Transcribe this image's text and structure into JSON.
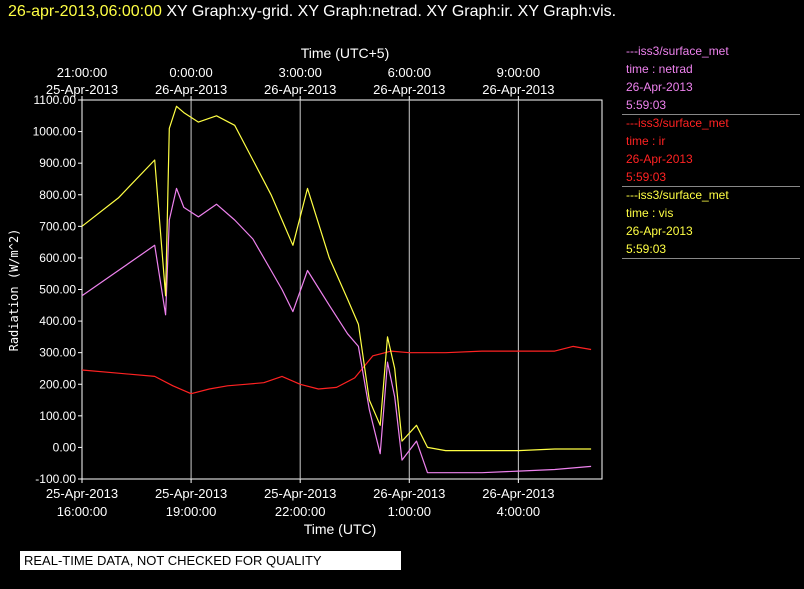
{
  "header": {
    "timestamp": "26-apr-2013,06:00:00",
    "graphs": "XY Graph:xy-grid.  XY Graph:netrad.  XY Graph:ir.  XY Graph:vis."
  },
  "legend": [
    {
      "line": "---iss3/surface_met",
      "var": "time : netrad",
      "date": "26-Apr-2013",
      "time": "5:59:03",
      "color": "#ee82ee"
    },
    {
      "line": "---iss3/surface_met",
      "var": "time : ir",
      "date": "26-Apr-2013",
      "time": "5:59:03",
      "color": "#ff2222"
    },
    {
      "line": "---iss3/surface_met",
      "var": "time : vis",
      "date": "26-Apr-2013",
      "time": "5:59:03",
      "color": "#ffff44"
    }
  ],
  "warning": "REAL-TIME DATA, NOT CHECKED FOR QUALITY",
  "chart_data": {
    "type": "line",
    "ylabel": "Radiation (W/m^2)",
    "xlabel_bottom": "Time (UTC)",
    "xlabel_top": "Time (UTC+5)",
    "ylim": [
      -100,
      1100
    ],
    "xlim_hours_utc": [
      16.0,
      30.3
    ],
    "yticks": [
      -100,
      0,
      100,
      200,
      300,
      400,
      500,
      600,
      700,
      800,
      900,
      1000,
      1100
    ],
    "ytick_labels": [
      "-100.00",
      "0.00",
      "100.00",
      "200.00",
      "300.00",
      "400.00",
      "500.00",
      "600.00",
      "700.00",
      "800.00",
      "900.00",
      "1000.00",
      "1100.00"
    ],
    "xticks_bottom": [
      {
        "date": "25-Apr-2013",
        "time": "16:00:00"
      },
      {
        "date": "25-Apr-2013",
        "time": "19:00:00"
      },
      {
        "date": "25-Apr-2013",
        "time": "22:00:00"
      },
      {
        "date": "26-Apr-2013",
        "time": "1:00:00"
      },
      {
        "date": "26-Apr-2013",
        "time": "4:00:00"
      }
    ],
    "xticks_top": [
      {
        "time": "21:00:00",
        "date": "25-Apr-2013"
      },
      {
        "time": "0:00:00",
        "date": "26-Apr-2013"
      },
      {
        "time": "3:00:00",
        "date": "26-Apr-2013"
      },
      {
        "time": "6:00:00",
        "date": "26-Apr-2013"
      },
      {
        "time": "9:00:00",
        "date": "26-Apr-2013"
      }
    ],
    "grid": "vertical",
    "legend_position": "right",
    "series": [
      {
        "name": "time : vis",
        "color": "#ffff44",
        "x": [
          16.0,
          17.0,
          18.0,
          18.3,
          18.4,
          18.6,
          18.8,
          19.2,
          19.7,
          20.2,
          20.7,
          21.2,
          21.5,
          21.8,
          22.2,
          22.8,
          23.3,
          23.6,
          23.9,
          24.2,
          24.4,
          24.6,
          24.8,
          25.2,
          25.5,
          26.0,
          27.0,
          28.0,
          29.0,
          30.0
        ],
        "values": [
          700,
          790,
          910,
          480,
          1010,
          1080,
          1060,
          1030,
          1050,
          1020,
          910,
          800,
          720,
          640,
          820,
          600,
          470,
          390,
          150,
          70,
          350,
          250,
          20,
          70,
          0,
          -10,
          -10,
          -10,
          -5,
          -5
        ]
      },
      {
        "name": "time : netrad",
        "color": "#ee82ee",
        "x": [
          16.0,
          17.0,
          18.0,
          18.3,
          18.4,
          18.6,
          18.8,
          19.2,
          19.7,
          20.2,
          20.7,
          21.2,
          21.5,
          21.8,
          22.2,
          22.8,
          23.3,
          23.6,
          23.9,
          24.2,
          24.4,
          24.6,
          24.8,
          25.2,
          25.5,
          26.0,
          27.0,
          28.0,
          29.0,
          30.0
        ],
        "values": [
          480,
          560,
          640,
          420,
          720,
          820,
          760,
          730,
          770,
          720,
          660,
          560,
          500,
          430,
          560,
          450,
          360,
          320,
          120,
          -20,
          270,
          160,
          -40,
          20,
          -80,
          -80,
          -80,
          -75,
          -70,
          -60
        ]
      },
      {
        "name": "time : ir",
        "color": "#ff2222",
        "x": [
          16.0,
          17.0,
          18.0,
          18.5,
          19.0,
          19.5,
          20.0,
          20.5,
          21.0,
          21.5,
          22.0,
          22.5,
          23.0,
          23.5,
          24.0,
          24.5,
          25.0,
          26.0,
          27.0,
          28.0,
          29.0,
          29.5,
          30.0
        ],
        "values": [
          245,
          235,
          225,
          195,
          170,
          185,
          195,
          200,
          205,
          225,
          200,
          185,
          190,
          220,
          290,
          305,
          300,
          300,
          305,
          305,
          305,
          320,
          310
        ]
      }
    ]
  }
}
